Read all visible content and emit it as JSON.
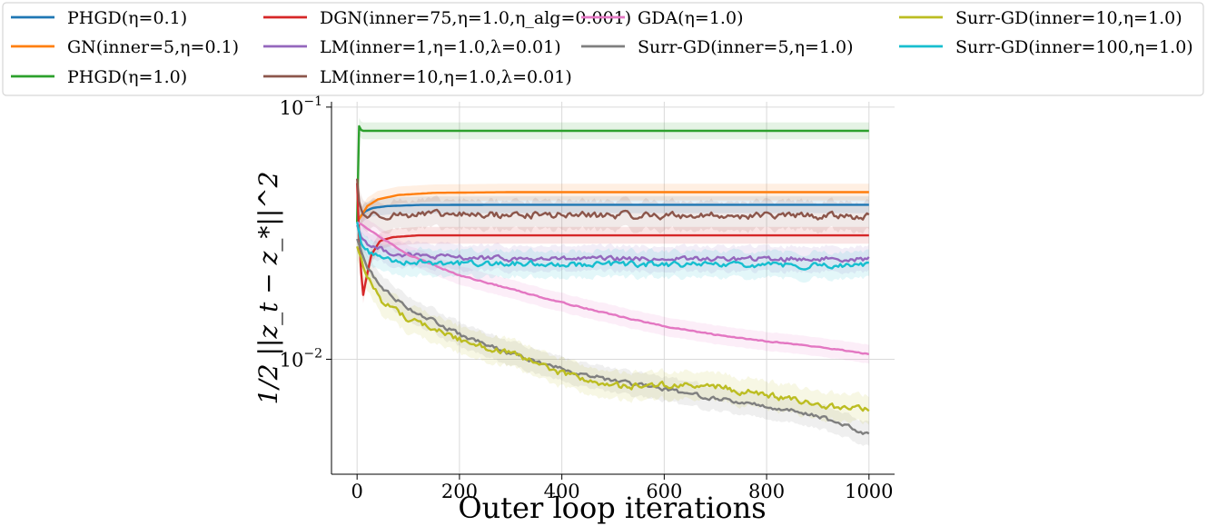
{
  "chart_data": {
    "type": "line",
    "title": "",
    "xlabel": "Outer loop iterations",
    "ylabel": "1/2 ||z_t − z_*||^2",
    "yscale": "log",
    "xlim": [
      -50,
      1050
    ],
    "ylim": [
      0.0035,
      0.105
    ],
    "grid": true,
    "legend_position": "top",
    "x_ticks": [
      0,
      200,
      400,
      600,
      800,
      1000
    ],
    "x_tick_labels": [
      "0",
      "200",
      "400",
      "600",
      "800",
      "1000"
    ],
    "y_ticks": [
      0.1,
      0.01
    ],
    "y_tick_labels": [
      {
        "base": "10",
        "exp": "−1"
      },
      {
        "base": "10",
        "exp": "−2"
      }
    ],
    "series": [
      {
        "name": "PHGD(η=0.1)",
        "color": "#1f77b4",
        "noise": 0,
        "points": [
          [
            0,
            0.035
          ],
          [
            5,
            0.0365
          ],
          [
            15,
            0.0385
          ],
          [
            30,
            0.0398
          ],
          [
            60,
            0.0405
          ],
          [
            120,
            0.0409
          ],
          [
            300,
            0.041
          ],
          [
            1000,
            0.041
          ]
        ]
      },
      {
        "name": "GN(inner=5,η=0.1)",
        "color": "#ff7f0e",
        "noise": 0,
        "points": [
          [
            0,
            0.035
          ],
          [
            8,
            0.037
          ],
          [
            20,
            0.0405
          ],
          [
            40,
            0.043
          ],
          [
            80,
            0.0448
          ],
          [
            150,
            0.0457
          ],
          [
            300,
            0.046
          ],
          [
            1000,
            0.046
          ]
        ]
      },
      {
        "name": "PHGD(η=1.0)",
        "color": "#2ca02c",
        "noise": 0,
        "points": [
          [
            0,
            0.035
          ],
          [
            2,
            0.088
          ],
          [
            5,
            0.082
          ],
          [
            10,
            0.0805
          ],
          [
            1000,
            0.0805
          ]
        ]
      },
      {
        "name": "DGN(inner=75,η=1.0,η_alg=0.001)",
        "color": "#d62728",
        "noise": 0,
        "points": [
          [
            0,
            0.05
          ],
          [
            4,
            0.031
          ],
          [
            8,
            0.022
          ],
          [
            12,
            0.018
          ],
          [
            18,
            0.021
          ],
          [
            28,
            0.026
          ],
          [
            45,
            0.0295
          ],
          [
            70,
            0.0305
          ],
          [
            120,
            0.031
          ],
          [
            1000,
            0.031
          ]
        ]
      },
      {
        "name": "LM(inner=1,η=1.0,λ=0.01)",
        "color": "#9467bd",
        "noise": 0.035,
        "points": [
          [
            0,
            0.034
          ],
          [
            10,
            0.03
          ],
          [
            30,
            0.028
          ],
          [
            80,
            0.026
          ],
          [
            150,
            0.0255
          ],
          [
            300,
            0.025
          ],
          [
            1000,
            0.025
          ]
        ]
      },
      {
        "name": "LM(inner=10,η=1.0,λ=0.01)",
        "color": "#8c564b",
        "noise": 0.05,
        "points": [
          [
            0,
            0.052
          ],
          [
            5,
            0.04
          ],
          [
            15,
            0.037
          ],
          [
            40,
            0.0375
          ],
          [
            1000,
            0.037
          ]
        ]
      },
      {
        "name": "GDA(η=1.0)",
        "color": "#e377c2",
        "noise": 0.008,
        "points": [
          [
            0,
            0.035
          ],
          [
            40,
            0.031
          ],
          [
            100,
            0.026
          ],
          [
            200,
            0.0215
          ],
          [
            300,
            0.019
          ],
          [
            400,
            0.0168
          ],
          [
            500,
            0.015
          ],
          [
            600,
            0.0135
          ],
          [
            700,
            0.0125
          ],
          [
            800,
            0.0118
          ],
          [
            900,
            0.0112
          ],
          [
            1000,
            0.0105
          ]
        ]
      },
      {
        "name": "Surr-GD(inner=5,η=1.0)",
        "color": "#7f7f7f",
        "noise": 0.03,
        "points": [
          [
            0,
            0.03
          ],
          [
            20,
            0.023
          ],
          [
            50,
            0.019
          ],
          [
            100,
            0.016
          ],
          [
            200,
            0.0125
          ],
          [
            300,
            0.0105
          ],
          [
            400,
            0.0092
          ],
          [
            500,
            0.0082
          ],
          [
            600,
            0.0076
          ],
          [
            700,
            0.007
          ],
          [
            800,
            0.0065
          ],
          [
            900,
            0.006
          ],
          [
            1000,
            0.005
          ]
        ]
      },
      {
        "name": "Surr-GD(inner=10,η=1.0)",
        "color": "#bcbd22",
        "noise": 0.045,
        "points": [
          [
            0,
            0.028
          ],
          [
            20,
            0.021
          ],
          [
            50,
            0.017
          ],
          [
            100,
            0.0145
          ],
          [
            200,
            0.012
          ],
          [
            300,
            0.0105
          ],
          [
            400,
            0.0088
          ],
          [
            500,
            0.0078
          ],
          [
            600,
            0.0079
          ],
          [
            700,
            0.0078
          ],
          [
            800,
            0.0072
          ],
          [
            900,
            0.0066
          ],
          [
            1000,
            0.0063
          ]
        ]
      },
      {
        "name": "Surr-GD(inner=100,η=1.0)",
        "color": "#17becf",
        "noise": 0.04,
        "points": [
          [
            0,
            0.035
          ],
          [
            10,
            0.028
          ],
          [
            30,
            0.026
          ],
          [
            80,
            0.0245
          ],
          [
            200,
            0.024
          ],
          [
            1000,
            0.0235
          ]
        ]
      }
    ]
  }
}
